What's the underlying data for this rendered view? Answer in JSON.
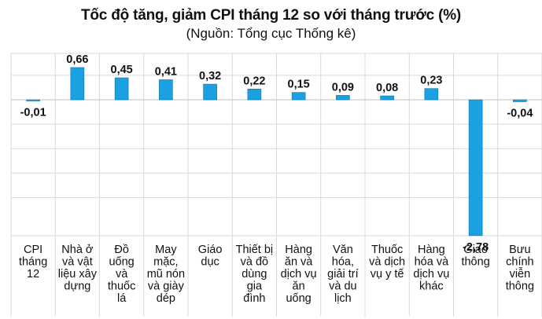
{
  "chart_data": {
    "type": "bar",
    "title": "Tốc độ tăng, giảm CPI tháng 12 so với tháng trước (%)",
    "subtitle": "(Nguồn: Tổng cục Thống kê)",
    "categories": [
      [
        "CPI",
        "tháng",
        "12"
      ],
      [
        "Nhà ở",
        "và vật",
        "liệu xây",
        "dựng"
      ],
      [
        "Đồ",
        "uống",
        "và",
        "thuốc",
        "lá"
      ],
      [
        "May",
        "mặc,",
        "mũ nón",
        "và giày",
        "dép"
      ],
      [
        "Giáo",
        "dục"
      ],
      [
        "Thiết bị",
        "và đồ",
        "dùng",
        "gia",
        "đình"
      ],
      [
        "Hàng",
        "ăn và",
        "dịch vụ",
        "ăn",
        "uống"
      ],
      [
        "Văn",
        "hóa,",
        "giải trí",
        "và du",
        "lịch"
      ],
      [
        "Thuốc",
        "và dịch",
        "vụ y tế"
      ],
      [
        "Hàng",
        "hóa và",
        "dịch vụ",
        "khác"
      ],
      [
        "Giao",
        "thông"
      ],
      [
        "Bưu",
        "chính",
        "viễn",
        "thông"
      ]
    ],
    "values": [
      -0.01,
      0.66,
      0.45,
      0.41,
      0.32,
      0.22,
      0.15,
      0.09,
      0.08,
      0.23,
      -2.78,
      -0.04
    ],
    "data_labels": [
      "-0,01",
      "0,66",
      "0,45",
      "0,41",
      "0,32",
      "0,22",
      "0,15",
      "0,09",
      "0,08",
      "0,23",
      "-2,78",
      "-0,04"
    ],
    "ylim": [
      -2.78,
      0.95
    ],
    "grid": true,
    "legend": "none",
    "colors": {
      "bar_fill": "#1ba1e2",
      "bar_stroke": "#0e6fa3",
      "grid": "#d9d9d9",
      "axis": "#bfbfbf",
      "text": "#111111"
    }
  }
}
